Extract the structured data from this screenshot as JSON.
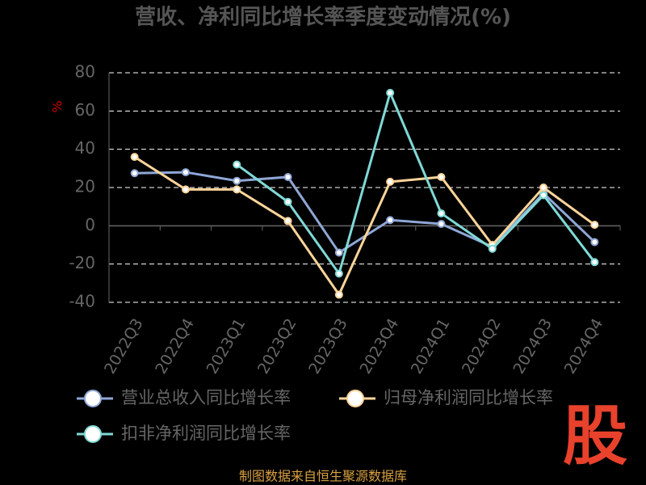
{
  "chart_data": {
    "type": "line",
    "title": "营收、净利同比增长率季度变动情况(%)",
    "y_label": "%",
    "categories": [
      "2022Q3",
      "2022Q4",
      "2023Q1",
      "2023Q2",
      "2023Q3",
      "2023Q4",
      "2024Q1",
      "2024Q2",
      "2024Q3",
      "2024Q4"
    ],
    "series": [
      {
        "name": "营业总收入同比增长率",
        "color": "#8fa7d6",
        "values": [
          27.5,
          28,
          23.5,
          25.5,
          -14,
          3,
          1,
          -11,
          17,
          -8.5
        ]
      },
      {
        "name": "归母净利润同比增长率",
        "color": "#ffd59a",
        "values": [
          36,
          19,
          19,
          2.5,
          -36,
          23,
          25.5,
          -10,
          20,
          0.5
        ]
      },
      {
        "name": "扣非净利润同比增长率",
        "color": "#7fd9d6",
        "values": [
          null,
          null,
          32,
          12.5,
          -25,
          69.5,
          6.5,
          -12,
          16,
          -19
        ]
      }
    ],
    "ylim": [
      -40,
      80
    ],
    "yticks": [
      -40,
      -20,
      0,
      20,
      40,
      60,
      80
    ],
    "grid": true,
    "source": "制图数据来自恒生聚源数据库",
    "logo": "股"
  }
}
